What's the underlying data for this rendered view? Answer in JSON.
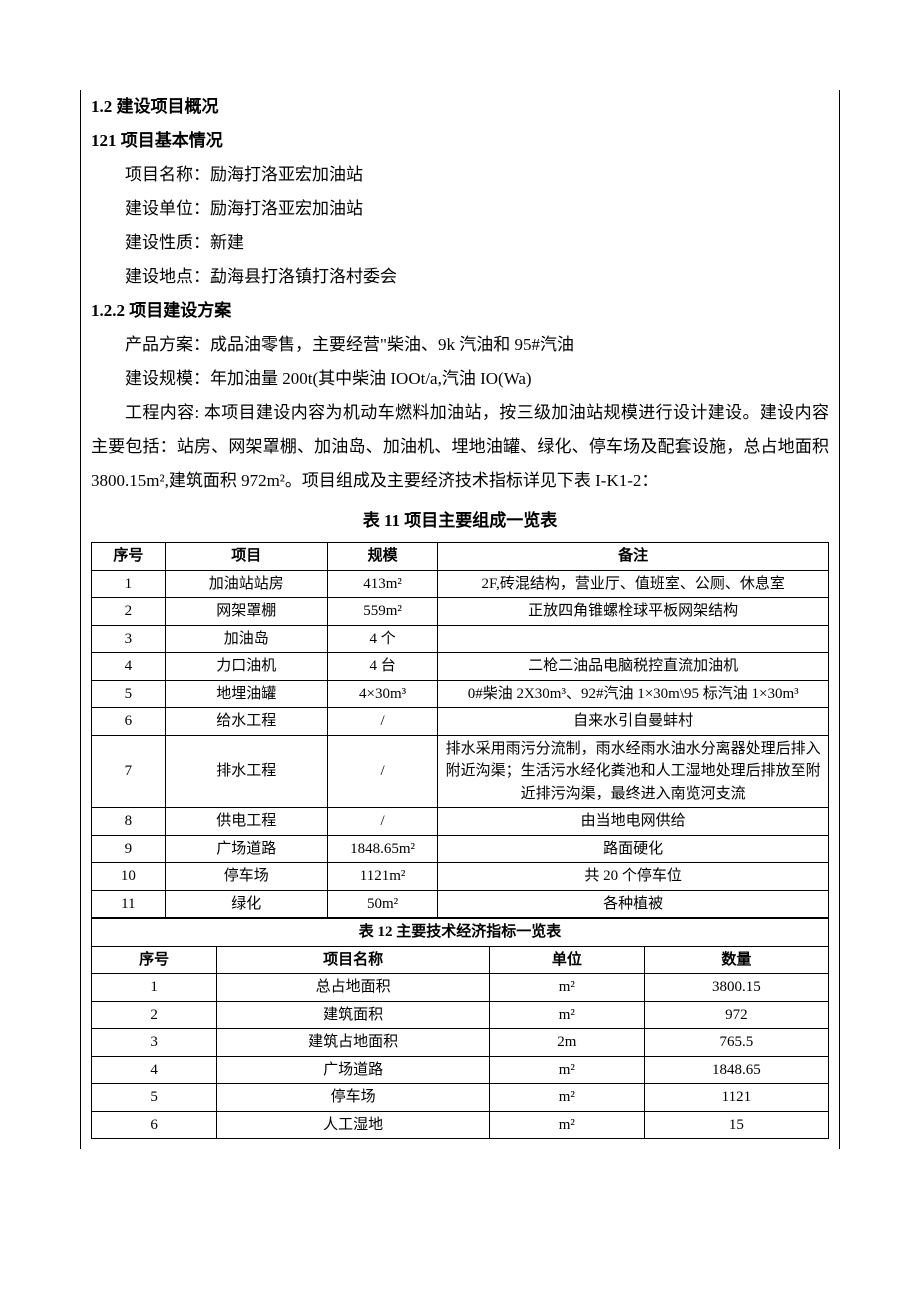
{
  "headings": {
    "s12": "1.2 建设项目概况",
    "s121": "121 项目基本情况",
    "s122": "1.2.2 项目建设方案"
  },
  "basicInfo": {
    "nameLabel": "项目名称：",
    "nameValue": "励海打洛亚宏加油站",
    "unitLabel": "建设单位：",
    "unitValue": "励海打洛亚宏加油站",
    "natureLabel": "建设性质：",
    "natureValue": "新建",
    "locLabel": "建设地点：",
    "locValue": "勐海县打洛镇打洛村委会"
  },
  "plan": {
    "productLine": "产品方案：成品油零售，主要经营\"柴油、9k 汽油和 95#汽油",
    "scaleLine": "建设规模：年加油量 200t(其中柴油 IOOt/a,汽油 IO(Wa)",
    "contentLine": "工程内容: 本项目建设内容为机动车燃料加油站，按三级加油站规模进行设计建设。建设内容主要包括：站房、网架罩棚、加油岛、加油机、埋地油罐、绿化、停车场及配套设施，总占地面积 3800.15m²,建筑面积 972m²。项目组成及主要经济技术指标详见下表 I-K1-2："
  },
  "table1": {
    "caption": "表 11 项目主要组成一览表",
    "headers": [
      "序号",
      "项目",
      "规模",
      "备注"
    ],
    "rows": [
      {
        "no": "1",
        "item": "加油站站房",
        "scale": "413m²",
        "remark": "2F,砖混结构，营业厅、值班室、公厕、休息室"
      },
      {
        "no": "2",
        "item": "网架罩棚",
        "scale": "559m²",
        "remark": "正放四角锥螺栓球平板网架结构"
      },
      {
        "no": "3",
        "item": "加油岛",
        "scale": "4 个",
        "remark": ""
      },
      {
        "no": "4",
        "item": "力口油机",
        "scale": "4 台",
        "remark": "二枪二油品电脑税控直流加油机"
      },
      {
        "no": "5",
        "item": "地埋油罐",
        "scale": "4×30m³",
        "remark": "0#柴油 2X30m³、92#汽油 1×30m\\95 标汽油 1×30m³"
      },
      {
        "no": "6",
        "item": "给水工程",
        "scale": "/",
        "remark": "自来水引自曼蚌村"
      },
      {
        "no": "7",
        "item": "排水工程",
        "scale": "/",
        "remark": "排水采用雨污分流制，雨水经雨水油水分离器处理后排入附近沟渠；生活污水经化粪池和人工湿地处理后排放至附近排污沟渠，最终进入南览河支流"
      },
      {
        "no": "8",
        "item": "供电工程",
        "scale": "/",
        "remark": "由当地电网供给"
      },
      {
        "no": "9",
        "item": "广场道路",
        "scale": "1848.65m²",
        "remark": "路面硬化"
      },
      {
        "no": "10",
        "item": "停车场",
        "scale": "1121m²",
        "remark": "共 20 个停车位"
      },
      {
        "no": "11",
        "item": "绿化",
        "scale": "50m²",
        "remark": "各种植被"
      }
    ]
  },
  "table2": {
    "caption": "表 12 主要技术经济指标一览表",
    "headers": [
      "序号",
      "项目名称",
      "单位",
      "数量"
    ],
    "rows": [
      {
        "no": "1",
        "name": "总占地面积",
        "unit": "m²",
        "qty": "3800.15"
      },
      {
        "no": "2",
        "name": "建筑面积",
        "unit": "m²",
        "qty": "972"
      },
      {
        "no": "3",
        "name": "建筑占地面积",
        "unit": "2m",
        "qty": "765.5"
      },
      {
        "no": "4",
        "name": "广场道路",
        "unit": "m²",
        "qty": "1848.65"
      },
      {
        "no": "5",
        "name": "停车场",
        "unit": "m²",
        "qty": "1121"
      },
      {
        "no": "6",
        "name": "人工湿地",
        "unit": "m²",
        "qty": "15"
      }
    ]
  }
}
